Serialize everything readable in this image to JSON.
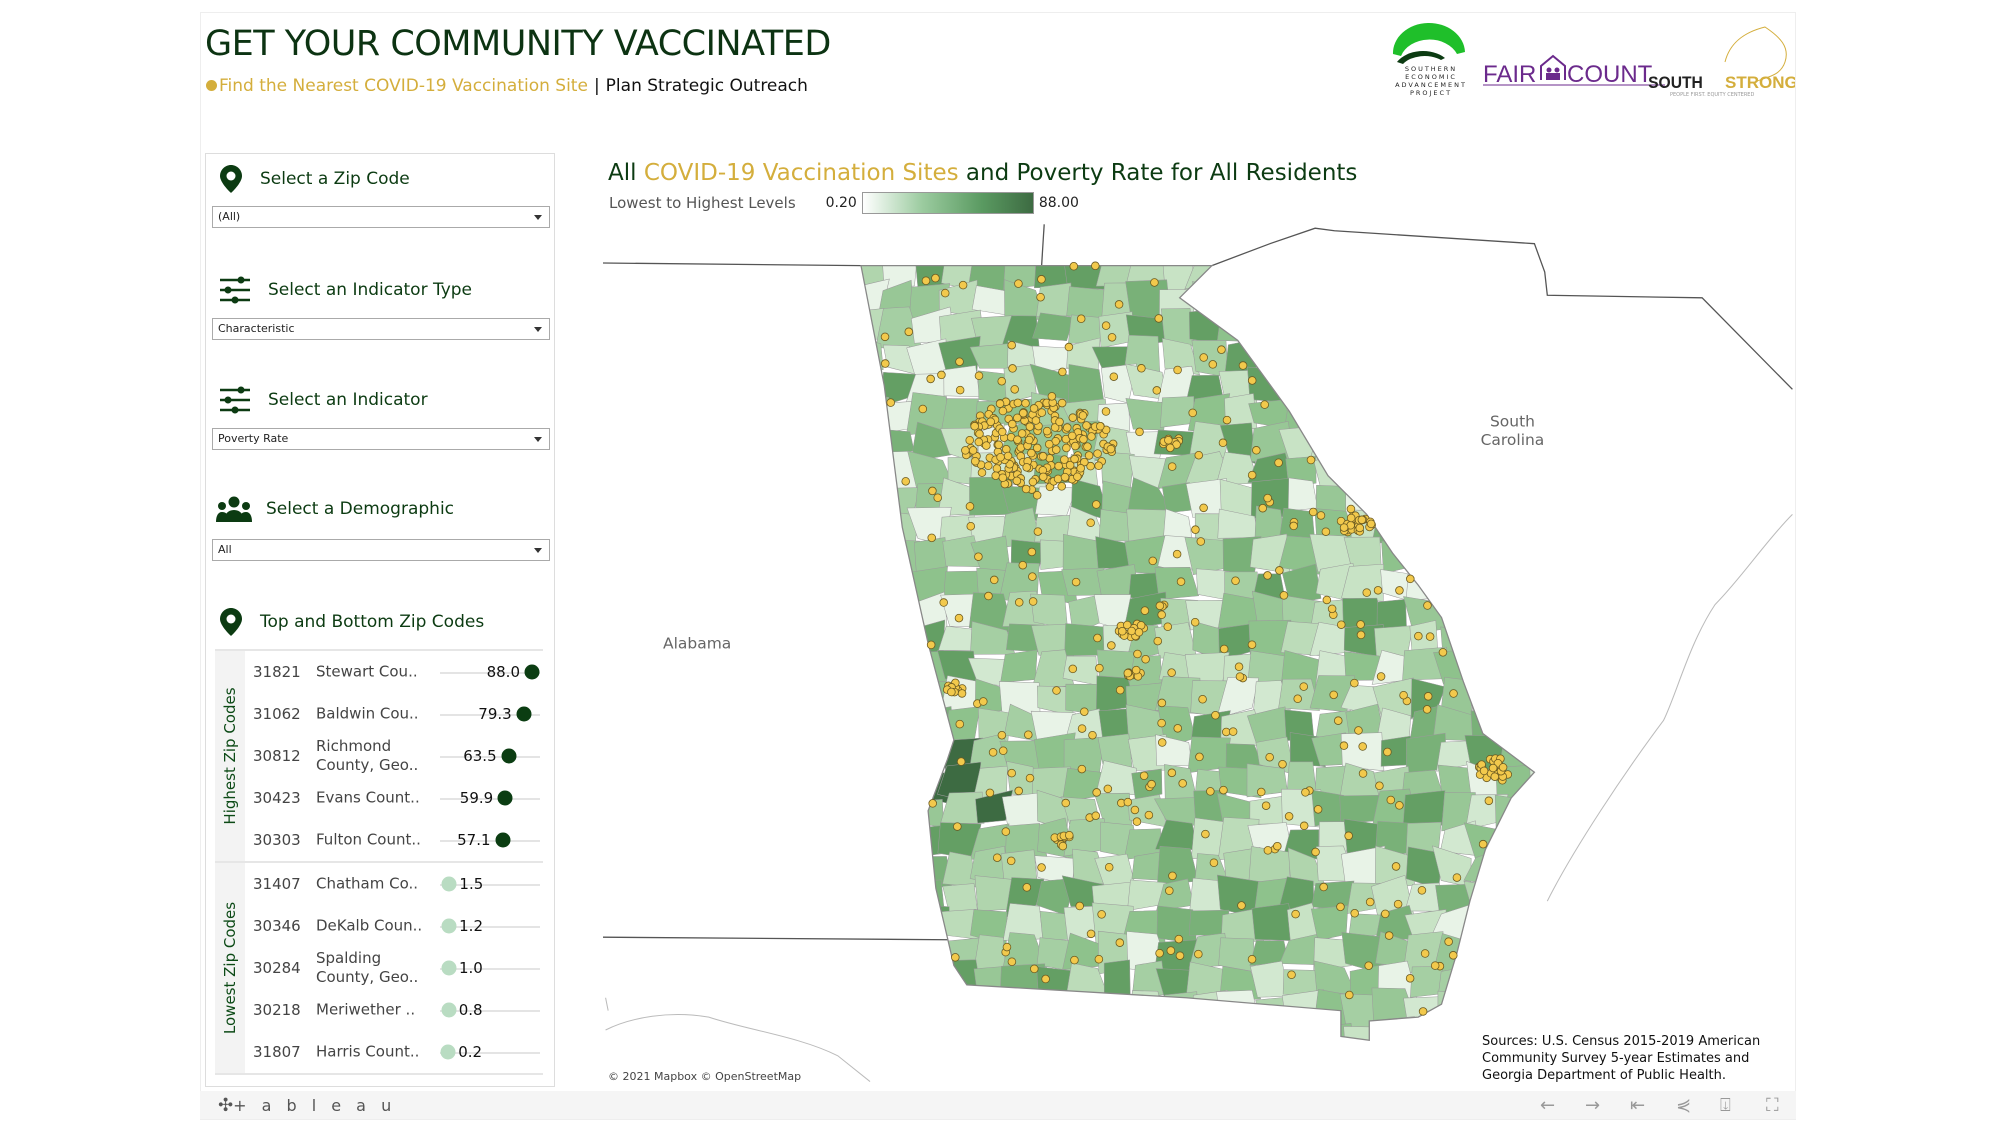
{
  "header": {
    "title": "GET YOUR COMMUNITY VACCINATED",
    "subtitle_link": "Find the Nearest COVID-19 Vaccination Site",
    "subtitle_sep": "|",
    "subtitle_rest": "Plan Strategic Outreach"
  },
  "logos": {
    "seap": [
      "SOUTHERN",
      "ECONOMIC",
      "ADVANCEMENT",
      "PROJECT"
    ],
    "faircount_a": "FAIR",
    "faircount_b": "COUNT",
    "south": "SOUTH",
    "strong": "STRONG",
    "tagline": "PEOPLE FIRST. EQUITY CENTERED"
  },
  "filters": [
    {
      "label": "Select a Zip Code",
      "value": "(All)",
      "icon": "map-pin"
    },
    {
      "label": "Select an Indicator Type",
      "value": "Characteristic",
      "icon": "sliders"
    },
    {
      "label": "Select an Indicator",
      "value": "Poverty Rate",
      "icon": "sliders"
    },
    {
      "label": "Select a Demographic",
      "value": "All",
      "icon": "people"
    }
  ],
  "ranking": {
    "title": "Top and Bottom Zip Codes",
    "max": 88.0,
    "groups": [
      {
        "label": "Highest Zip Codes",
        "rows": [
          {
            "zip": "31821",
            "name": "Stewart Cou..",
            "value": "88.0"
          },
          {
            "zip": "31062",
            "name": "Baldwin Cou..",
            "value": "79.3"
          },
          {
            "zip": "30812",
            "name": "Richmond County, Geo..",
            "value": "63.5"
          },
          {
            "zip": "30423",
            "name": "Evans Count..",
            "value": "59.9"
          },
          {
            "zip": "30303",
            "name": "Fulton Count..",
            "value": "57.1"
          }
        ]
      },
      {
        "label": "Lowest Zip Codes",
        "rows": [
          {
            "zip": "31407",
            "name": "Chatham Co..",
            "value": "1.5"
          },
          {
            "zip": "30346",
            "name": "DeKalb Coun..",
            "value": "1.2"
          },
          {
            "zip": "30284",
            "name": "Spalding County, Geo..",
            "value": "1.0"
          },
          {
            "zip": "30218",
            "name": "Meriwether ..",
            "value": "0.8"
          },
          {
            "zip": "31807",
            "name": "Harris Count..",
            "value": "0.2"
          }
        ]
      }
    ]
  },
  "map": {
    "title_a": "All ",
    "title_b": "COVID-19 Vaccination Sites",
    "title_c": " and Poverty Rate for All Residents",
    "legend_label": "Lowest to Highest Levels",
    "legend_min": "0.20",
    "legend_max": "88.00",
    "state_labels": {
      "alabama": "Alabama",
      "sc1": "South",
      "sc2": "Carolina"
    },
    "attribution": "© 2021 Mapbox © OpenStreetMap",
    "sources": "Sources: U.S. Census 2015-2019 American Community Survey 5-year Estimates and Georgia Department of Public Health.",
    "colors": {
      "low": "#ffffff",
      "high": "#3d6b42",
      "site": "#f2c94c"
    }
  },
  "toolbar": {
    "brand": "+ a b l e a u",
    "buttons": [
      "undo",
      "redo",
      "revert",
      "share",
      "download",
      "fullscreen"
    ]
  }
}
